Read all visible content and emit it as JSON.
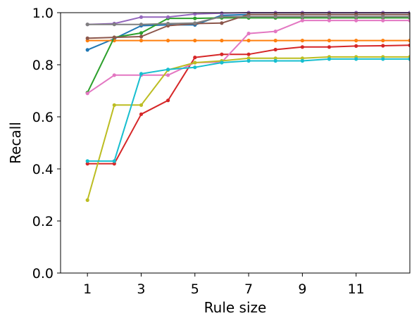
{
  "chart_data": {
    "type": "line",
    "title": "",
    "xlabel": "Rule size",
    "ylabel": "Recall",
    "xlim": [
      0,
      13
    ],
    "ylim": [
      0.0,
      1.0
    ],
    "xticks": [
      1,
      3,
      5,
      7,
      9,
      11
    ],
    "xtick_labels": [
      "1",
      "3",
      "5",
      "7",
      "9",
      "11"
    ],
    "yticks": [
      0.0,
      0.2,
      0.4,
      0.6,
      0.8,
      1.0
    ],
    "ytick_labels": [
      "0.0",
      "0.2",
      "0.4",
      "0.6",
      "0.8",
      "1.0"
    ],
    "grid": false,
    "legend": "none",
    "x": [
      1,
      2,
      3,
      4,
      5,
      6,
      7,
      8,
      9,
      10,
      11,
      12,
      13
    ],
    "series": [
      {
        "color": "#1f77b4",
        "values": [
          0.857,
          0.9,
          0.95,
          0.953,
          0.953,
          0.99,
          0.993,
          0.993,
          0.993,
          0.993,
          0.993,
          0.993,
          0.993
        ]
      },
      {
        "color": "#ff7f0e",
        "values": [
          0.893,
          0.893,
          0.893,
          0.893,
          0.893,
          0.893,
          0.893,
          0.893,
          0.893,
          0.893,
          0.893,
          0.893,
          0.893
        ]
      },
      {
        "color": "#2ca02c",
        "values": [
          0.693,
          0.905,
          0.922,
          0.978,
          0.978,
          0.98,
          0.98,
          0.98,
          0.98,
          0.98,
          0.98,
          0.98,
          0.98
        ]
      },
      {
        "color": "#d62728",
        "values": [
          0.42,
          0.42,
          0.61,
          0.663,
          0.828,
          0.84,
          0.84,
          0.858,
          0.868,
          0.868,
          0.872,
          0.873,
          0.875
        ]
      },
      {
        "color": "#9467bd",
        "values": [
          0.955,
          0.958,
          0.983,
          0.983,
          0.995,
          0.998,
          1.0,
          1.0,
          1.0,
          1.0,
          1.0,
          1.0,
          1.0
        ]
      },
      {
        "color": "#8c564b",
        "values": [
          0.902,
          0.905,
          0.908,
          0.95,
          0.958,
          0.96,
          0.993,
          0.993,
          0.993,
          0.993,
          0.993,
          0.993,
          0.993
        ]
      },
      {
        "color": "#e377c2",
        "values": [
          0.69,
          0.76,
          0.76,
          0.76,
          0.808,
          0.81,
          0.92,
          0.928,
          0.97,
          0.97,
          0.97,
          0.97,
          0.97
        ]
      },
      {
        "color": "#7f7f7f",
        "values": [
          0.955,
          0.955,
          0.955,
          0.958,
          0.96,
          0.985,
          0.985,
          0.985,
          0.985,
          0.985,
          0.985,
          0.985,
          0.985
        ]
      },
      {
        "color": "#bcbd22",
        "values": [
          0.28,
          0.645,
          0.645,
          0.78,
          0.808,
          0.815,
          0.825,
          0.825,
          0.825,
          0.83,
          0.83,
          0.83,
          0.83
        ]
      },
      {
        "color": "#17becf",
        "values": [
          0.43,
          0.43,
          0.765,
          0.782,
          0.79,
          0.808,
          0.815,
          0.815,
          0.815,
          0.822,
          0.822,
          0.822,
          0.822
        ]
      }
    ]
  }
}
